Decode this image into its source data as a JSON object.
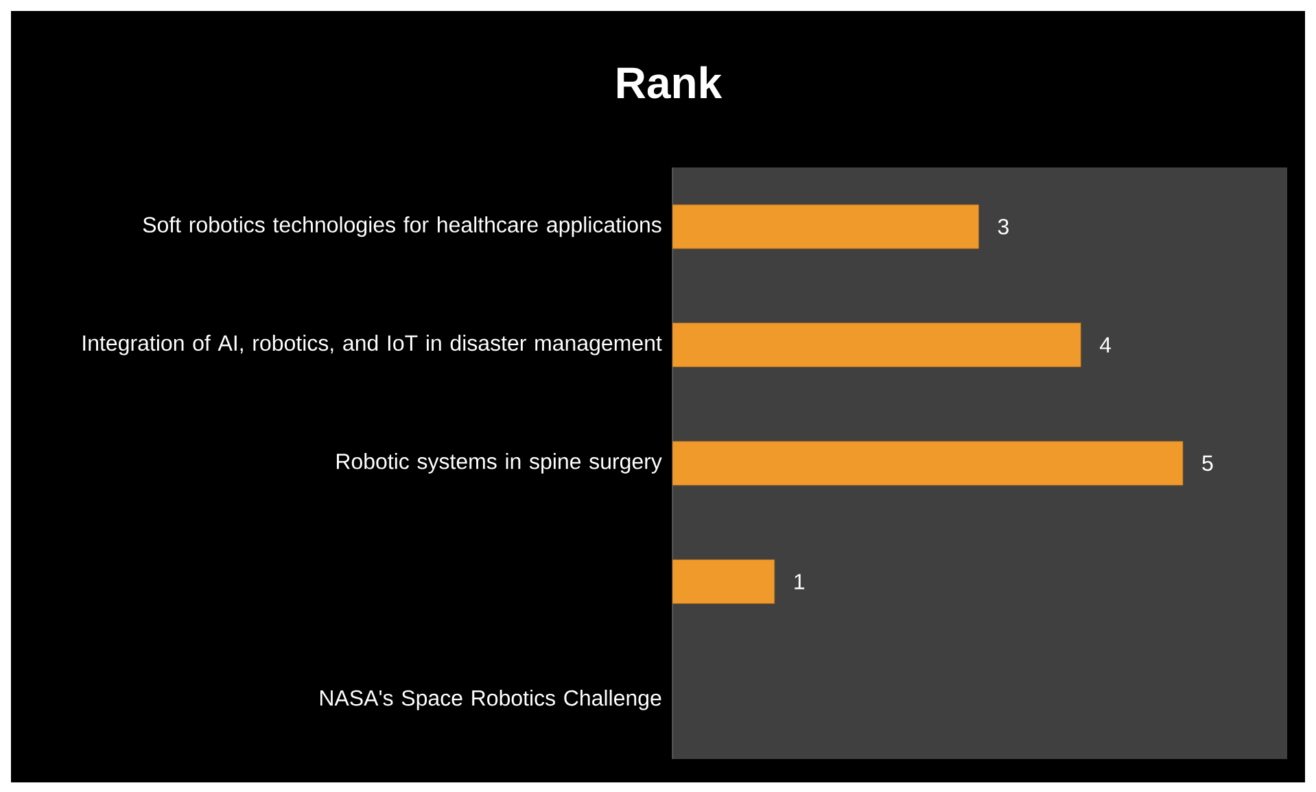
{
  "chart_data": {
    "type": "bar",
    "orientation": "horizontal",
    "title": "Rank",
    "categories": [
      "Soft robotics technologies for healthcare applications",
      "Integration of AI, robotics, and IoT in disaster management",
      "Robotic systems in spine surgery",
      null,
      "NASA's Space Robotics Challenge"
    ],
    "values": [
      3,
      4,
      5,
      1,
      null
    ],
    "color": "#f09a2c",
    "data_labels": true,
    "tick_labels": "y",
    "grid": false
  }
}
